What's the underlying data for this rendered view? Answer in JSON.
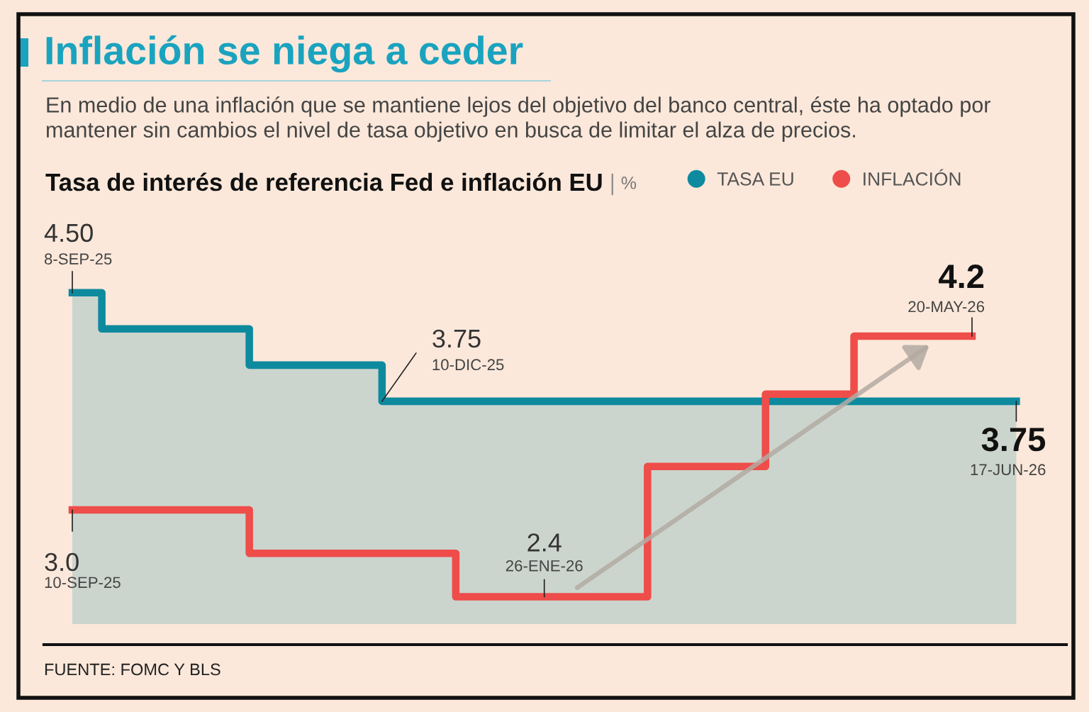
{
  "chart_data": {
    "type": "step",
    "title": "Inflación se niega a ceder",
    "subtitle": "En medio de una inflación que se mantiene lejos del objetivo del banco central, éste ha optado por mantener sin cambios el nivel de tasa objetivo en busca de limitar el alza de precios.",
    "categories": [
      null,
      null,
      null,
      null,
      null,
      null,
      null,
      null,
      null,
      null,
      null,
      null,
      null,
      null,
      null,
      null,
      null,
      null,
      null,
      null,
      null,
      null,
      null,
      null,
      null,
      null,
      null,
      null,
      null,
      null,
      null,
      null,
      null,
      null,
      null,
      null,
      null,
      null,
      null,
      null,
      null,
      null,
      null,
      null,
      null,
      null,
      null,
      null,
      null,
      null,
      null,
      null,
      null,
      null,
      null,
      null,
      null,
      null,
      null,
      null,
      null,
      null,
      null,
      null,
      null
    ],
    "series": [
      {
        "name": "TASA EU",
        "color": "#0e8a9e",
        "values": [
          4.5,
          4.5,
          4.25,
          4.25,
          4.25,
          4.25,
          4.25,
          4.25,
          4.25,
          4.25,
          4.25,
          4.25,
          4.0,
          4.0,
          4.0,
          4.0,
          4.0,
          4.0,
          4.0,
          4.0,
          4.0,
          3.75,
          3.75,
          3.75,
          3.75,
          3.75,
          3.75,
          3.75,
          3.75,
          3.75,
          3.75,
          3.75,
          3.75,
          3.75,
          3.75,
          3.75,
          3.75,
          3.75,
          3.75,
          3.75,
          3.75,
          3.75,
          3.75,
          3.75,
          3.75,
          3.75,
          3.75,
          3.75,
          3.75,
          3.75,
          3.75,
          3.75,
          3.75,
          3.75,
          3.75,
          3.75,
          3.75,
          3.75,
          3.75,
          3.75,
          3.75,
          3.75,
          3.75,
          3.75,
          3.75
        ],
        "value_labels": [
          "4.50",
          null,
          null,
          null,
          null,
          null,
          null,
          null,
          null,
          null,
          null,
          null,
          null,
          null,
          null,
          null,
          null,
          null,
          null,
          null,
          null,
          "3.75",
          null,
          null,
          null,
          null,
          null,
          null,
          null,
          null,
          null,
          null,
          null,
          null,
          null,
          null,
          null,
          null,
          null,
          null,
          null,
          null,
          null,
          null,
          null,
          null,
          null,
          null,
          null,
          null,
          null,
          null,
          null,
          null,
          null,
          null,
          null,
          null,
          null,
          null,
          null,
          null,
          null,
          null,
          "3.75"
        ]
      },
      {
        "name": "INFLACIÓN",
        "color": "#ee4d4a",
        "values": [
          3.0,
          3.0,
          3.0,
          3.0,
          3.0,
          3.0,
          3.0,
          3.0,
          3.0,
          3.0,
          3.0,
          3.0,
          2.7,
          2.7,
          2.7,
          2.7,
          2.7,
          2.7,
          2.7,
          2.7,
          2.7,
          2.7,
          2.7,
          2.7,
          2.7,
          2.7,
          2.4,
          2.4,
          2.4,
          2.4,
          2.4,
          2.4,
          2.4,
          2.4,
          2.4,
          2.4,
          2.4,
          2.4,
          2.4,
          3.3,
          3.3,
          3.3,
          3.3,
          3.3,
          3.3,
          3.3,
          3.3,
          3.8,
          3.8,
          3.8,
          3.8,
          3.8,
          3.8,
          4.2,
          4.2,
          4.2,
          4.2,
          4.2,
          4.2,
          4.2,
          4.2,
          4.2,
          null,
          null,
          null
        ],
        "value_labels": [
          "3.0",
          null,
          null,
          null,
          null,
          null,
          null,
          null,
          null,
          null,
          null,
          null,
          null,
          null,
          null,
          null,
          null,
          null,
          null,
          null,
          null,
          null,
          null,
          null,
          null,
          null,
          null,
          null,
          null,
          null,
          null,
          null,
          "2.4",
          null,
          null,
          null,
          null,
          null,
          null,
          null,
          null,
          null,
          null,
          null,
          null,
          null,
          null,
          null,
          null,
          null,
          null,
          null,
          null,
          null,
          null,
          null,
          null,
          null,
          null,
          null,
          null,
          "4.2",
          null,
          null,
          null
        ]
      }
    ],
    "tick_labels": false,
    "legend": "top right",
    "annotations": [
      "Tasa de interés de referencia Fed e inflación EU",
      "%",
      "FUENTE: FOMC Y BLS",
      "17-JUN-26",
      "10-SEP-25",
      {
        "text": "8-SEP-25",
        "y": 4.5
      },
      {
        "text": "10-DIC-25",
        "y": 3.75
      },
      {
        "text": "26-ENE-26",
        "y": 2.4
      },
      {
        "text": "20-MAY-26",
        "y": 4.2
      }
    ]
  }
}
